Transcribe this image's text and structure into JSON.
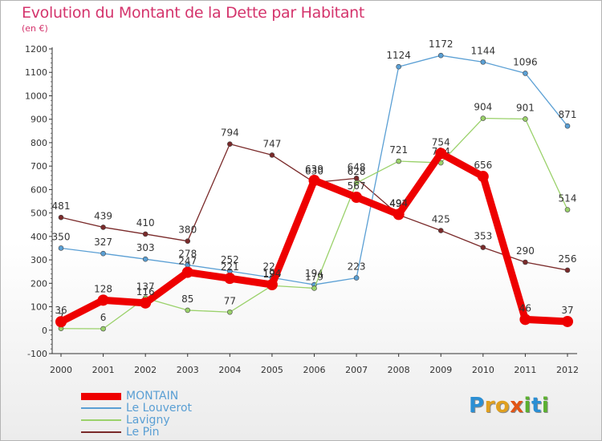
{
  "header": {
    "title": "Evolution du Montant de la Dette par Habitant",
    "unit": "(en €)"
  },
  "brand": {
    "text": "Proxiti",
    "letters": [
      {
        "ch": "P",
        "color": "#2b8fd4"
      },
      {
        "ch": "r",
        "color": "#e0a020"
      },
      {
        "ch": "o",
        "color": "#e0a020"
      },
      {
        "ch": "x",
        "color": "#e25516"
      },
      {
        "ch": "i",
        "color": "#5bb030"
      },
      {
        "ch": "t",
        "color": "#2b8fd4"
      },
      {
        "ch": "i",
        "color": "#5bb030"
      }
    ]
  },
  "chart_data": {
    "type": "line",
    "title": "Evolution du Montant de la Dette par Habitant",
    "ylabel": "(en €)",
    "xlabel": "",
    "x": [
      "2000",
      "2001",
      "2002",
      "2003",
      "2004",
      "2005",
      "2006",
      "2007",
      "2008",
      "2009",
      "2010",
      "2011",
      "2012"
    ],
    "ylim": [
      -100,
      1200
    ],
    "yticks": [
      -100,
      0,
      100,
      200,
      300,
      400,
      500,
      600,
      700,
      800,
      900,
      1000,
      1100,
      1200
    ],
    "grid": false,
    "legend": "bottom-left",
    "series": [
      {
        "name": "Le Pin",
        "color": "#7a2a2a",
        "values": [
          481,
          439,
          410,
          380,
          794,
          747,
          630,
          648,
          492,
          425,
          353,
          290,
          256
        ]
      },
      {
        "name": "Le Louverot",
        "color": "#5a9fd4",
        "values": [
          350,
          327,
          303,
          278,
          252,
          224,
          194,
          223,
          1124,
          1172,
          1144,
          1096,
          871
        ]
      },
      {
        "name": "Lavigny",
        "color": "#9ad16a",
        "values": [
          7,
          6,
          137,
          85,
          77,
          190,
          179,
          628,
          721,
          714,
          904,
          901,
          514
        ]
      },
      {
        "name": "MONTAIN",
        "color": "#ee0000",
        "values": [
          36,
          128,
          116,
          247,
          221,
          194,
          639,
          567,
          494,
          754,
          656,
          46,
          37
        ]
      }
    ]
  }
}
